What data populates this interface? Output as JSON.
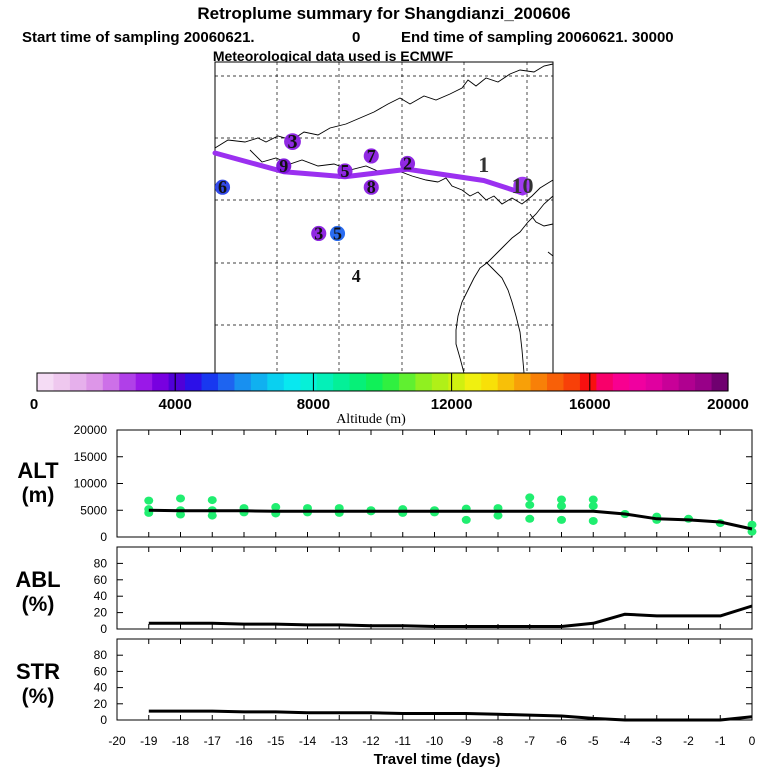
{
  "header": {
    "title": "Retroplume summary for Shangdianzi_200606",
    "start_label": "Start time of sampling 20060621.",
    "start_seconds": "0",
    "end_label": "End time of sampling 20060621. 30000",
    "met_line": "Meteorological data used is ECMWF"
  },
  "colorbar": {
    "tick_labels": [
      "0",
      "4000",
      "8000",
      "12000",
      "16000",
      "20000"
    ],
    "axis_label": "Altitude (m)",
    "colors": [
      "#f5dcf5",
      "#efc8ef",
      "#e6b0ec",
      "#dd96e8",
      "#cd70e8",
      "#b040e8",
      "#9a18e8",
      "#7800e0",
      "#5000d8",
      "#2c10e8",
      "#1838f0",
      "#1e64f0",
      "#1890f0",
      "#10b0f0",
      "#0ad0f0",
      "#08e8f0",
      "#06f0d8",
      "#04f0b8",
      "#04f098",
      "#06f078",
      "#10f058",
      "#30f040",
      "#60f030",
      "#90f020",
      "#b0f018",
      "#d0f010",
      "#f0f010",
      "#f8e008",
      "#f8c008",
      "#f8a008",
      "#f88008",
      "#f86008",
      "#f84008",
      "#f81010",
      "#f8006a",
      "#f80090",
      "#f000a0",
      "#e000a0",
      "#c80098",
      "#b00090",
      "#980088",
      "#700070"
    ]
  },
  "map": {
    "trajectory_color": "#9b30f0",
    "clusters": [
      {
        "id": "3",
        "lon": 6.2,
        "lat": 9.2,
        "color": "#8a1ee0"
      },
      {
        "id": "9",
        "lon": 5.5,
        "lat": 7.3,
        "color": "#7a10d8"
      },
      {
        "id": "6",
        "lon": 0.6,
        "lat": 5.6,
        "color": "#2840e8"
      },
      {
        "id": "5",
        "lon": 10.4,
        "lat": 6.9,
        "color": "#8a1ee0"
      },
      {
        "id": "2",
        "lon": 15.4,
        "lat": 7.5,
        "color": "#8a1ee0"
      },
      {
        "id": "7",
        "lon": 12.5,
        "lat": 8.1,
        "color": "#8a1ee0"
      },
      {
        "id": "8",
        "lon": 12.5,
        "lat": 5.6,
        "color": "#8a1ee0"
      },
      {
        "id": "1",
        "lon": 21.5,
        "lat": 7.3,
        "color": "#444444"
      },
      {
        "id": "10",
        "lon": 24.6,
        "lat": 5.6,
        "color": "#9b30f0"
      },
      {
        "id": "3",
        "lon": 8.3,
        "lat": 1.9,
        "color": "#8a1ee0"
      },
      {
        "id": "5",
        "lon": 9.8,
        "lat": 1.9,
        "color": "#1e64f0"
      },
      {
        "id": "4",
        "lon": 11.3,
        "lat": -1.5,
        "color": "#5000d8"
      }
    ]
  },
  "chart_data": [
    {
      "type": "scatter",
      "panel_label_top": "ALT",
      "panel_label_bottom": "(m)",
      "ylim": [
        0,
        20000
      ],
      "y_ticks": [
        "0",
        "5000",
        "10000",
        "15000",
        "20000"
      ],
      "x": [
        -19,
        -18,
        -17,
        -16,
        -15,
        -14,
        -13,
        -12,
        -11,
        -10,
        -9,
        -8,
        -7,
        -6,
        -5,
        -4,
        -3,
        -2,
        -1,
        0
      ],
      "median_line": [
        5000,
        4900,
        4900,
        4900,
        4800,
        4800,
        4800,
        4800,
        4800,
        4800,
        4800,
        4800,
        4800,
        4800,
        4800,
        4300,
        3400,
        3200,
        2800,
        1500
      ],
      "points": [
        [
          -19,
          6800
        ],
        [
          -19,
          5200
        ],
        [
          -19,
          4500
        ],
        [
          -18,
          7200
        ],
        [
          -18,
          5000
        ],
        [
          -18,
          4200
        ],
        [
          -17,
          6900
        ],
        [
          -17,
          5000
        ],
        [
          -17,
          4000
        ],
        [
          -16,
          5400
        ],
        [
          -16,
          4600
        ],
        [
          -15,
          5600
        ],
        [
          -15,
          4400
        ],
        [
          -14,
          5400
        ],
        [
          -14,
          4600
        ],
        [
          -13,
          5400
        ],
        [
          -13,
          4500
        ],
        [
          -12,
          5000
        ],
        [
          -12,
          4800
        ],
        [
          -11,
          5200
        ],
        [
          -11,
          4500
        ],
        [
          -10,
          5000
        ],
        [
          -10,
          4600
        ],
        [
          -9,
          5300
        ],
        [
          -9,
          3200
        ],
        [
          -8,
          5400
        ],
        [
          -8,
          4000
        ],
        [
          -7,
          7400
        ],
        [
          -7,
          6000
        ],
        [
          -7,
          3400
        ],
        [
          -6,
          7000
        ],
        [
          -6,
          5800
        ],
        [
          -6,
          3200
        ],
        [
          -5,
          7000
        ],
        [
          -5,
          5800
        ],
        [
          -5,
          3000
        ],
        [
          -4,
          4300
        ],
        [
          -3,
          3800
        ],
        [
          -3,
          3200
        ],
        [
          -2,
          3400
        ],
        [
          -1,
          2600
        ],
        [
          0,
          2300
        ],
        [
          0,
          1000
        ]
      ]
    },
    {
      "type": "line",
      "panel_label_top": "ABL",
      "panel_label_bottom": "(%)",
      "ylim": [
        0,
        100
      ],
      "y_ticks": [
        "0",
        "20",
        "40",
        "60",
        "80"
      ],
      "x": [
        -19,
        -18,
        -17,
        -16,
        -15,
        -14,
        -13,
        -12,
        -11,
        -10,
        -9,
        -8,
        -7,
        -6,
        -5,
        -4,
        -3,
        -2,
        -1,
        0
      ],
      "values": [
        7,
        7,
        7,
        6,
        6,
        5,
        5,
        4,
        4,
        3,
        3,
        3,
        3,
        3,
        7,
        18,
        16,
        16,
        16,
        28
      ]
    },
    {
      "type": "line",
      "panel_label_top": "STR",
      "panel_label_bottom": "(%)",
      "ylim": [
        0,
        100
      ],
      "y_ticks": [
        "0",
        "20",
        "40",
        "60",
        "80"
      ],
      "x": [
        -19,
        -18,
        -17,
        -16,
        -15,
        -14,
        -13,
        -12,
        -11,
        -10,
        -9,
        -8,
        -7,
        -6,
        -5,
        -4,
        -3,
        -2,
        -1,
        0
      ],
      "values": [
        11,
        11,
        11,
        10,
        10,
        9,
        9,
        9,
        8,
        8,
        8,
        7,
        6,
        5,
        2,
        0,
        0,
        0,
        0,
        4
      ]
    }
  ],
  "x_axis": {
    "xlim": [
      -20,
      0
    ],
    "tick_labels": [
      "-20",
      "-19",
      "-18",
      "-17",
      "-16",
      "-15",
      "-14",
      "-13",
      "-12",
      "-11",
      "-10",
      "-9",
      "-8",
      "-7",
      "-6",
      "-5",
      "-4",
      "-3",
      "-2",
      "-1",
      "0"
    ],
    "label": "Travel time (days)"
  },
  "style": {
    "point_color": "#20ee70",
    "line_color": "#000000",
    "trajectory_color": "#9b30f0"
  }
}
